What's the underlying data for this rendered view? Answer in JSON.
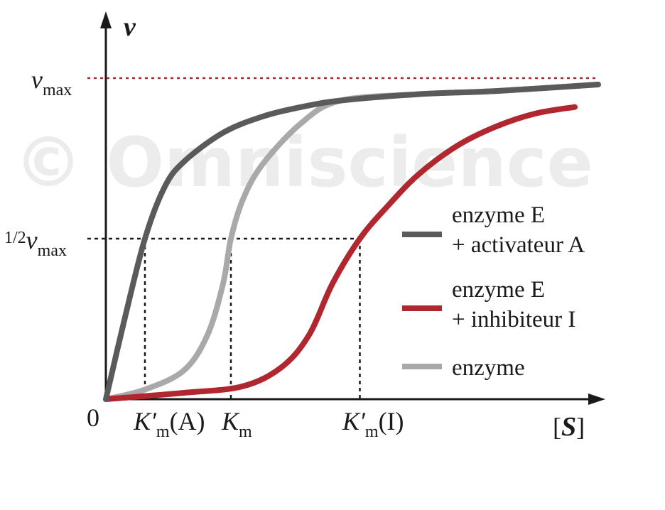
{
  "watermark": "© Omniscience",
  "chart_data": {
    "type": "line",
    "y_axis": {
      "symbol": "v"
    },
    "x_axis": {
      "symbol": "S",
      "bracket_open": "[",
      "bracket_close": "]"
    },
    "origin_label": "0",
    "y_ticks": {
      "vmax": {
        "main": "v",
        "sub": "max"
      },
      "half_vmax": {
        "frac": "1/2",
        "main": "v",
        "sub": "max"
      }
    },
    "x_ticks": {
      "km_a": {
        "main": "K′",
        "sub": "m",
        "arg": "(A)",
        "x": 1.0
      },
      "km": {
        "main": "K",
        "sub": "m",
        "x": 3.2
      },
      "km_i": {
        "main": "K′",
        "sub": "m",
        "arg": "(I)",
        "x": 6.5
      }
    },
    "xlim": [
      0,
      12.8
    ],
    "ylim": [
      0,
      1.0
    ],
    "vmax": 1.0,
    "grid": false,
    "legend_position": "right",
    "series": [
      {
        "key": "activator",
        "name_line1": "enzyme E",
        "name_line2": "+ activateur A",
        "color": "#5a5a5a",
        "points": [
          [
            0,
            0
          ],
          [
            0.5,
            0.26
          ],
          [
            1.0,
            0.5
          ],
          [
            1.5,
            0.66
          ],
          [
            2.0,
            0.74
          ],
          [
            3.0,
            0.83
          ],
          [
            4.0,
            0.88
          ],
          [
            5.0,
            0.91
          ],
          [
            6.0,
            0.93
          ],
          [
            8.0,
            0.95
          ],
          [
            10.0,
            0.96
          ],
          [
            12.6,
            0.98
          ]
        ]
      },
      {
        "key": "inhibitor",
        "name_line1": "enzyme E",
        "name_line2": "+ inhibiteur I",
        "color": "#b0272f",
        "points": [
          [
            0,
            0
          ],
          [
            2.0,
            0.02
          ],
          [
            3.5,
            0.04
          ],
          [
            4.5,
            0.1
          ],
          [
            5.2,
            0.2
          ],
          [
            5.8,
            0.36
          ],
          [
            6.5,
            0.5
          ],
          [
            7.2,
            0.6
          ],
          [
            8.0,
            0.7
          ],
          [
            9.0,
            0.79
          ],
          [
            10.0,
            0.85
          ],
          [
            11.0,
            0.89
          ],
          [
            12.0,
            0.91
          ]
        ]
      },
      {
        "key": "enzyme",
        "name_line1": "enzyme",
        "name_line2": "",
        "color": "#a9a9a9",
        "points": [
          [
            0,
            0
          ],
          [
            1.0,
            0.03
          ],
          [
            2.0,
            0.09
          ],
          [
            2.6,
            0.2
          ],
          [
            3.0,
            0.36
          ],
          [
            3.2,
            0.5
          ],
          [
            3.5,
            0.62
          ],
          [
            4.0,
            0.73
          ],
          [
            5.0,
            0.86
          ],
          [
            6.0,
            0.93
          ],
          [
            8.0,
            0.95
          ],
          [
            10.0,
            0.96
          ],
          [
            12.6,
            0.98
          ]
        ]
      }
    ],
    "reference_lines": {
      "vmax_color": "#b0272f",
      "half_color": "#1a1a1a"
    }
  }
}
